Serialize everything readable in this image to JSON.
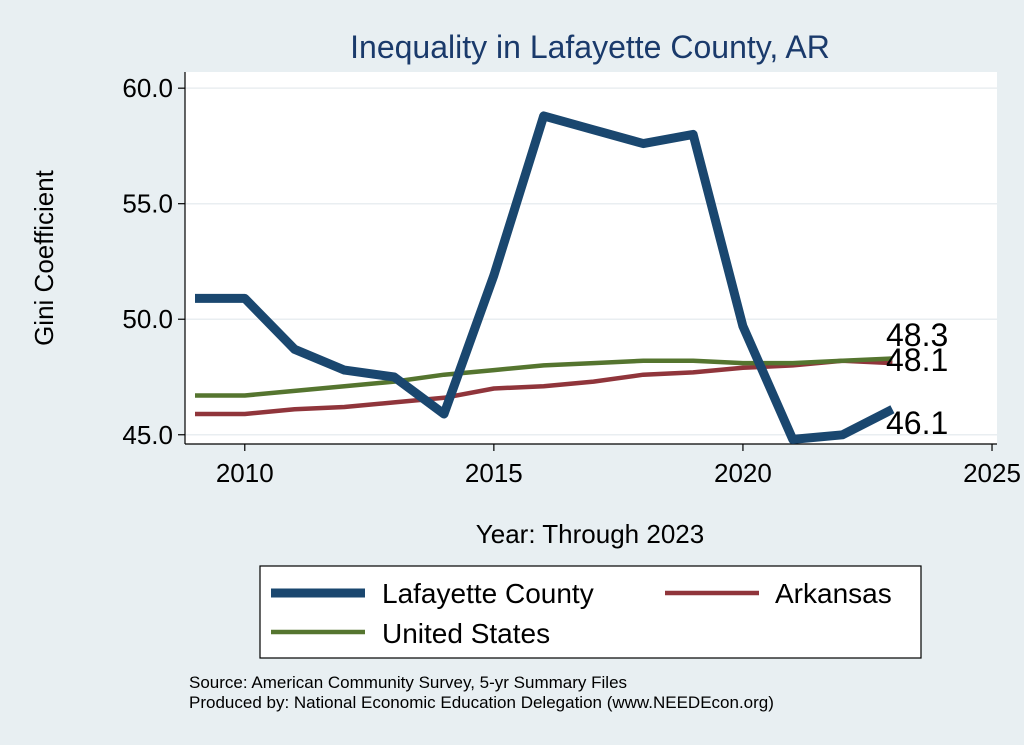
{
  "chart_data": {
    "type": "line",
    "title": "Inequality in Lafayette County, AR",
    "xlabel": "Year: Through 2023",
    "ylabel": "Gini Coefficient",
    "xlim": [
      2008.8,
      2025.1
    ],
    "ylim": [
      44.6,
      60.7
    ],
    "x_ticks": [
      2010,
      2015,
      2020,
      2025
    ],
    "y_ticks": [
      "45.0",
      "50.0",
      "55.0",
      "60.0"
    ],
    "grid": true,
    "series": [
      {
        "name": "Lafayette County",
        "color": "#1a476f",
        "x": [
          2009,
          2010,
          2011,
          2012,
          2013,
          2014,
          2015,
          2016,
          2017,
          2018,
          2019,
          2020,
          2021,
          2022,
          2023
        ],
        "values": [
          50.9,
          50.9,
          48.7,
          47.8,
          47.5,
          45.9,
          51.9,
          58.8,
          58.2,
          57.6,
          58.0,
          49.7,
          44.8,
          45.0,
          46.1
        ],
        "end_label": "46.1"
      },
      {
        "name": "Arkansas",
        "color": "#90353b",
        "x": [
          2009,
          2010,
          2011,
          2012,
          2013,
          2014,
          2015,
          2016,
          2017,
          2018,
          2019,
          2020,
          2021,
          2022,
          2023
        ],
        "values": [
          45.9,
          45.9,
          46.1,
          46.2,
          46.4,
          46.6,
          47.0,
          47.1,
          47.3,
          47.6,
          47.7,
          47.9,
          48.0,
          48.2,
          48.1
        ],
        "end_label": "48.1"
      },
      {
        "name": "United States",
        "color": "#55752f",
        "x": [
          2009,
          2010,
          2011,
          2012,
          2013,
          2014,
          2015,
          2016,
          2017,
          2018,
          2019,
          2020,
          2021,
          2022,
          2023
        ],
        "values": [
          46.7,
          46.7,
          46.9,
          47.1,
          47.3,
          47.6,
          47.8,
          48.0,
          48.1,
          48.2,
          48.2,
          48.1,
          48.1,
          48.2,
          48.3
        ],
        "end_label": "48.3"
      }
    ],
    "legend": {
      "placement": "bottom",
      "entries": [
        "Lafayette County",
        "Arkansas",
        "United States"
      ]
    }
  },
  "source": {
    "line1": "Source: American Community Survey, 5-yr Summary Files",
    "line2": "Produced by: National Economic Education Delegation (www.NEEDEcon.org)"
  }
}
